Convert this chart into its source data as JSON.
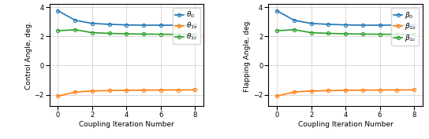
{
  "x": [
    0,
    1,
    2,
    3,
    4,
    5,
    6,
    7,
    8
  ],
  "left": {
    "ylabel": "Control Angle, deg.",
    "xlabel": "Coupling Iteration Number",
    "theta0": [
      3.75,
      3.1,
      2.88,
      2.82,
      2.78,
      2.76,
      2.76,
      2.76,
      2.76
    ],
    "theta1s": [
      -2.1,
      -1.82,
      -1.75,
      -1.72,
      -1.7,
      -1.69,
      -1.68,
      -1.68,
      -1.67
    ],
    "theta1c": [
      2.38,
      2.45,
      2.25,
      2.2,
      2.17,
      2.15,
      2.14,
      2.13,
      2.13
    ],
    "legend": [
      "$\\theta_0$",
      "$\\theta_{1s}$",
      "$\\theta_{1c}$"
    ]
  },
  "right": {
    "ylabel": "Flapping Angle, deg.",
    "xlabel": "Coupling Iteration Number",
    "beta0": [
      3.75,
      3.1,
      2.88,
      2.82,
      2.78,
      2.76,
      2.76,
      2.76,
      2.76
    ],
    "beta1s": [
      -2.1,
      -1.82,
      -1.75,
      -1.72,
      -1.7,
      -1.69,
      -1.68,
      -1.68,
      -1.67
    ],
    "beta1c": [
      2.38,
      2.45,
      2.25,
      2.2,
      2.17,
      2.15,
      2.14,
      2.13,
      2.13
    ],
    "legend": [
      "$\\beta_0$",
      "$\\beta_{1s}$",
      "$\\beta_{1c}$"
    ]
  },
  "ylim": [
    -2.8,
    4.2
  ],
  "yticks": [
    -2,
    0,
    2,
    4
  ],
  "xticks": [
    0,
    2,
    4,
    6,
    8
  ],
  "color_blue": "#1f77b4",
  "color_orange": "#ff7f0e",
  "color_green": "#2ca02c",
  "marker": "o",
  "markersize": 3.0,
  "linewidth": 1.2,
  "legend_fontsize": 6.5,
  "axis_fontsize": 6.5,
  "tick_fontsize": 6.0
}
